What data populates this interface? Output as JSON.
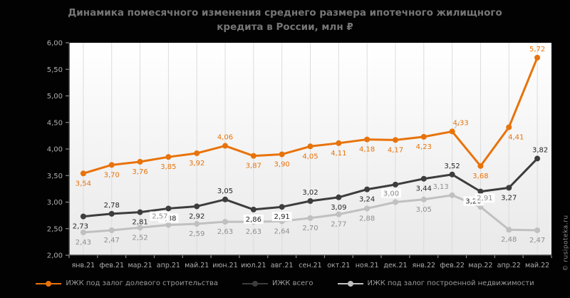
{
  "title": "Динамика помесячного изменения среднего размера ипотечного жилищного кредита в России, млн ₽",
  "watermark": "© rusipoteka.ru",
  "colors": {
    "background": "#020202",
    "plot_top": "#ffffff",
    "plot_bottom": "#e9e9e9",
    "gridline": "#dcdcdc",
    "axis": "#3a3a3a",
    "tick": "#8a8a8a",
    "axis_label": "#aeaeae",
    "title_text": "#767676",
    "legend_text": "#9b9b9b"
  },
  "chart_data": {
    "type": "line",
    "title": "Динамика помесячного изменения среднего размера ипотечного жилищного кредита в России, млн ₽",
    "categories": [
      "янв.21",
      "фев.21",
      "мар.21",
      "апр.21",
      "май.21",
      "июн.21",
      "июл.21",
      "авг.21",
      "сен.21",
      "окт.21",
      "ноя.21",
      "дек.21",
      "янв.22",
      "фев.22",
      "мар.22",
      "апр.22",
      "май.22"
    ],
    "series": [
      {
        "name": "ИЖК под залог долевого строительства",
        "color": "#e8730a",
        "label_color": "#e8730a",
        "values": [
          3.54,
          3.7,
          3.76,
          3.85,
          3.92,
          4.06,
          3.87,
          3.9,
          4.05,
          4.11,
          4.18,
          4.17,
          4.23,
          4.33,
          3.68,
          4.41,
          5.72
        ]
      },
      {
        "name": "ИЖК всего",
        "color": "#3d3d3d",
        "label_color": "#262626",
        "values": [
          2.73,
          2.78,
          2.81,
          2.88,
          2.92,
          3.05,
          2.86,
          2.91,
          3.02,
          3.09,
          3.24,
          3.33,
          3.44,
          3.52,
          3.2,
          3.27,
          3.82
        ]
      },
      {
        "name": "ИЖК под залог построенной недвижимости",
        "color": "#c0c0c0",
        "label_color": "#8f8f8f",
        "values": [
          2.43,
          2.47,
          2.52,
          2.57,
          2.59,
          2.63,
          2.63,
          2.64,
          2.7,
          2.77,
          2.88,
          3.0,
          3.05,
          3.13,
          2.91,
          2.48,
          2.47
        ]
      }
    ],
    "ylim": [
      2.0,
      6.0
    ],
    "ytick_step": 0.5,
    "ytick_labels": [
      "2,00",
      "2,50",
      "3,00",
      "3,50",
      "4,00",
      "4,50",
      "5,00",
      "5,50",
      "6,00"
    ],
    "grid": "vertical",
    "legend_position": "bottom",
    "value_labels": true,
    "value_label_format": "comma-decimal"
  }
}
